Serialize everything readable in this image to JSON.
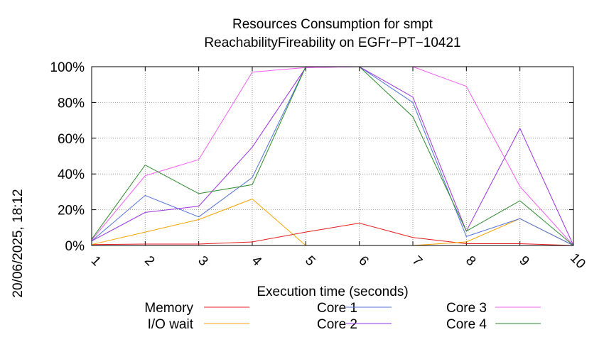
{
  "chart_data": {
    "type": "line",
    "title": "Resources Consumption for smpt",
    "subtitle": "ReachabilityFireability on EGFr−PT−10421",
    "xlabel": "Execution time (seconds)",
    "ylabel": "",
    "timestamp": "20/06/2025, 18:12",
    "x": [
      1,
      2,
      3,
      4,
      5,
      6,
      7,
      8,
      9,
      10
    ],
    "xlim": [
      1,
      10
    ],
    "ylim": [
      0,
      100
    ],
    "x_ticks": [
      "1",
      "2",
      "3",
      "4",
      "5",
      "6",
      "7",
      "8",
      "9",
      "10"
    ],
    "y_ticks": [
      {
        "value": 0,
        "label": "0%"
      },
      {
        "value": 20,
        "label": "20%"
      },
      {
        "value": 40,
        "label": "40%"
      },
      {
        "value": 60,
        "label": "60%"
      },
      {
        "value": 80,
        "label": "80%"
      },
      {
        "value": 100,
        "label": "100%"
      }
    ],
    "grid": true,
    "legend_position": "bottom",
    "series": [
      {
        "name": "Memory",
        "color": "#e41a1c",
        "values": [
          0.5,
          0.8,
          0.8,
          2,
          7.5,
          12.5,
          4.5,
          1,
          1,
          0
        ]
      },
      {
        "name": "I/O wait",
        "color": "#f5a300",
        "values": [
          0.5,
          7.5,
          14.5,
          26,
          0,
          0,
          0,
          2,
          15,
          0
        ]
      },
      {
        "name": "Core 1",
        "color": "#4f6fd8",
        "values": [
          2.5,
          28,
          16,
          38,
          100,
          100,
          80,
          5,
          15,
          0
        ]
      },
      {
        "name": "Core 2",
        "color": "#9b30e0",
        "values": [
          2.5,
          18.5,
          22,
          55,
          99.5,
          100,
          83,
          8,
          65.5,
          0
        ]
      },
      {
        "name": "Core 3",
        "color": "#f25cf2",
        "values": [
          3,
          39,
          48,
          97,
          99.5,
          100,
          100,
          89,
          33,
          0
        ]
      },
      {
        "name": "Core 4",
        "color": "#2b8a2b",
        "values": [
          3.5,
          45,
          29,
          34,
          100,
          100,
          72,
          8,
          25,
          0
        ]
      }
    ]
  }
}
